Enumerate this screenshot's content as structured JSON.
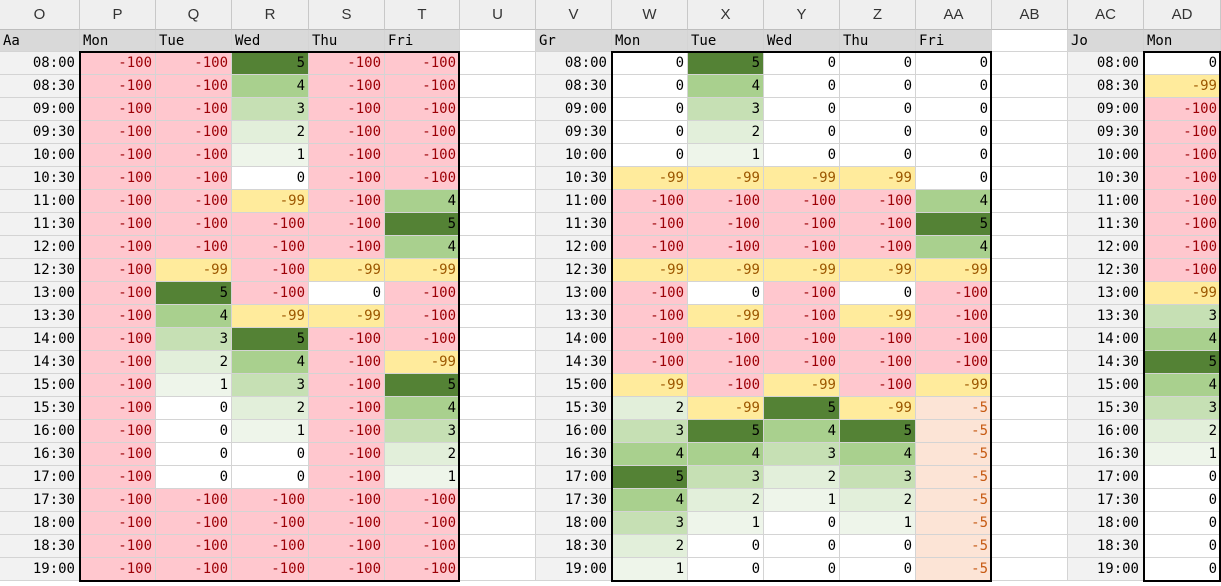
{
  "columns": [
    "O",
    "P",
    "Q",
    "R",
    "S",
    "T",
    "U",
    "V",
    "W",
    "X",
    "Y",
    "Z",
    "AA",
    "AB",
    "AC",
    "AD"
  ],
  "colors": {
    "unavailable": "#ffc7ce",
    "maybe": "#ffeb9c",
    "soft": "#fce4d6",
    "g1": "#eef5ea",
    "g2": "#e2efda",
    "g3": "#c6e0b4",
    "g4": "#a9d08e",
    "g5": "#548235",
    "zero": "#ffffff"
  },
  "times": [
    "08:00",
    "08:30",
    "09:00",
    "09:30",
    "10:00",
    "10:30",
    "11:00",
    "11:30",
    "12:00",
    "12:30",
    "13:00",
    "13:30",
    "14:00",
    "14:30",
    "15:00",
    "15:30",
    "16:00",
    "16:30",
    "17:00",
    "17:30",
    "18:00",
    "18:30",
    "19:00"
  ],
  "blocks": [
    {
      "name": "Aa",
      "days": [
        "Mon",
        "Tue",
        "Wed",
        "Thu",
        "Fri"
      ],
      "rows": [
        [
          "-100",
          "-100",
          "5",
          "-100",
          "-100"
        ],
        [
          "-100",
          "-100",
          "4",
          "-100",
          "-100"
        ],
        [
          "-100",
          "-100",
          "3",
          "-100",
          "-100"
        ],
        [
          "-100",
          "-100",
          "2",
          "-100",
          "-100"
        ],
        [
          "-100",
          "-100",
          "1",
          "-100",
          "-100"
        ],
        [
          "-100",
          "-100",
          "0",
          "-100",
          "-100"
        ],
        [
          "-100",
          "-100",
          "-99",
          "-100",
          "4"
        ],
        [
          "-100",
          "-100",
          "-100",
          "-100",
          "5"
        ],
        [
          "-100",
          "-100",
          "-100",
          "-100",
          "4"
        ],
        [
          "-100",
          "-99",
          "-100",
          "-99",
          "-99"
        ],
        [
          "-100",
          "5",
          "-100",
          "0",
          "-100"
        ],
        [
          "-100",
          "4",
          "-99",
          "-99",
          "-100"
        ],
        [
          "-100",
          "3",
          "5",
          "-100",
          "-100"
        ],
        [
          "-100",
          "2",
          "4",
          "-100",
          "-99"
        ],
        [
          "-100",
          "1",
          "3",
          "-100",
          "5"
        ],
        [
          "-100",
          "0",
          "2",
          "-100",
          "4"
        ],
        [
          "-100",
          "0",
          "1",
          "-100",
          "3"
        ],
        [
          "-100",
          "0",
          "0",
          "-100",
          "2"
        ],
        [
          "-100",
          "0",
          "0",
          "-100",
          "1"
        ],
        [
          "-100",
          "-100",
          "-100",
          "-100",
          "-100"
        ],
        [
          "-100",
          "-100",
          "-100",
          "-100",
          "-100"
        ],
        [
          "-100",
          "-100",
          "-100",
          "-100",
          "-100"
        ],
        [
          "-100",
          "-100",
          "-100",
          "-100",
          "-100"
        ]
      ]
    },
    {
      "name": "Gr",
      "days": [
        "Mon",
        "Tue",
        "Wed",
        "Thu",
        "Fri"
      ],
      "rows": [
        [
          "0",
          "5",
          "0",
          "0",
          "0"
        ],
        [
          "0",
          "4",
          "0",
          "0",
          "0"
        ],
        [
          "0",
          "3",
          "0",
          "0",
          "0"
        ],
        [
          "0",
          "2",
          "0",
          "0",
          "0"
        ],
        [
          "0",
          "1",
          "0",
          "0",
          "0"
        ],
        [
          "-99",
          "-99",
          "-99",
          "-99",
          "0"
        ],
        [
          "-100",
          "-100",
          "-100",
          "-100",
          "4"
        ],
        [
          "-100",
          "-100",
          "-100",
          "-100",
          "5"
        ],
        [
          "-100",
          "-100",
          "-100",
          "-100",
          "4"
        ],
        [
          "-99",
          "-99",
          "-99",
          "-99",
          "-99"
        ],
        [
          "-100",
          "0",
          "-100",
          "0",
          "-100"
        ],
        [
          "-100",
          "-99",
          "-100",
          "-99",
          "-100"
        ],
        [
          "-100",
          "-100",
          "-100",
          "-100",
          "-100"
        ],
        [
          "-100",
          "-100",
          "-100",
          "-100",
          "-100"
        ],
        [
          "-99",
          "-100",
          "-99",
          "-100",
          "-99"
        ],
        [
          "2",
          "-99",
          "5",
          "-99",
          "-5"
        ],
        [
          "3",
          "5",
          "4",
          "5",
          "-5"
        ],
        [
          "4",
          "4",
          "3",
          "4",
          "-5"
        ],
        [
          "5",
          "3",
          "2",
          "3",
          "-5"
        ],
        [
          "4",
          "2",
          "1",
          "2",
          "-5"
        ],
        [
          "3",
          "1",
          "0",
          "1",
          "-5"
        ],
        [
          "2",
          "0",
          "0",
          "0",
          "-5"
        ],
        [
          "1",
          "0",
          "0",
          "0",
          "-5"
        ]
      ]
    },
    {
      "name": "Jo",
      "days": [
        "Mon"
      ],
      "rows": [
        [
          "0"
        ],
        [
          "-99"
        ],
        [
          "-100"
        ],
        [
          "-100"
        ],
        [
          "-100"
        ],
        [
          "-100"
        ],
        [
          "-100"
        ],
        [
          "-100"
        ],
        [
          "-100"
        ],
        [
          "-100"
        ],
        [
          "-99"
        ],
        [
          "3"
        ],
        [
          "4"
        ],
        [
          "5"
        ],
        [
          "4"
        ],
        [
          "3"
        ],
        [
          "2"
        ],
        [
          "1"
        ],
        [
          "0"
        ],
        [
          "0"
        ],
        [
          "0"
        ],
        [
          "0"
        ],
        [
          "0"
        ]
      ]
    }
  ]
}
